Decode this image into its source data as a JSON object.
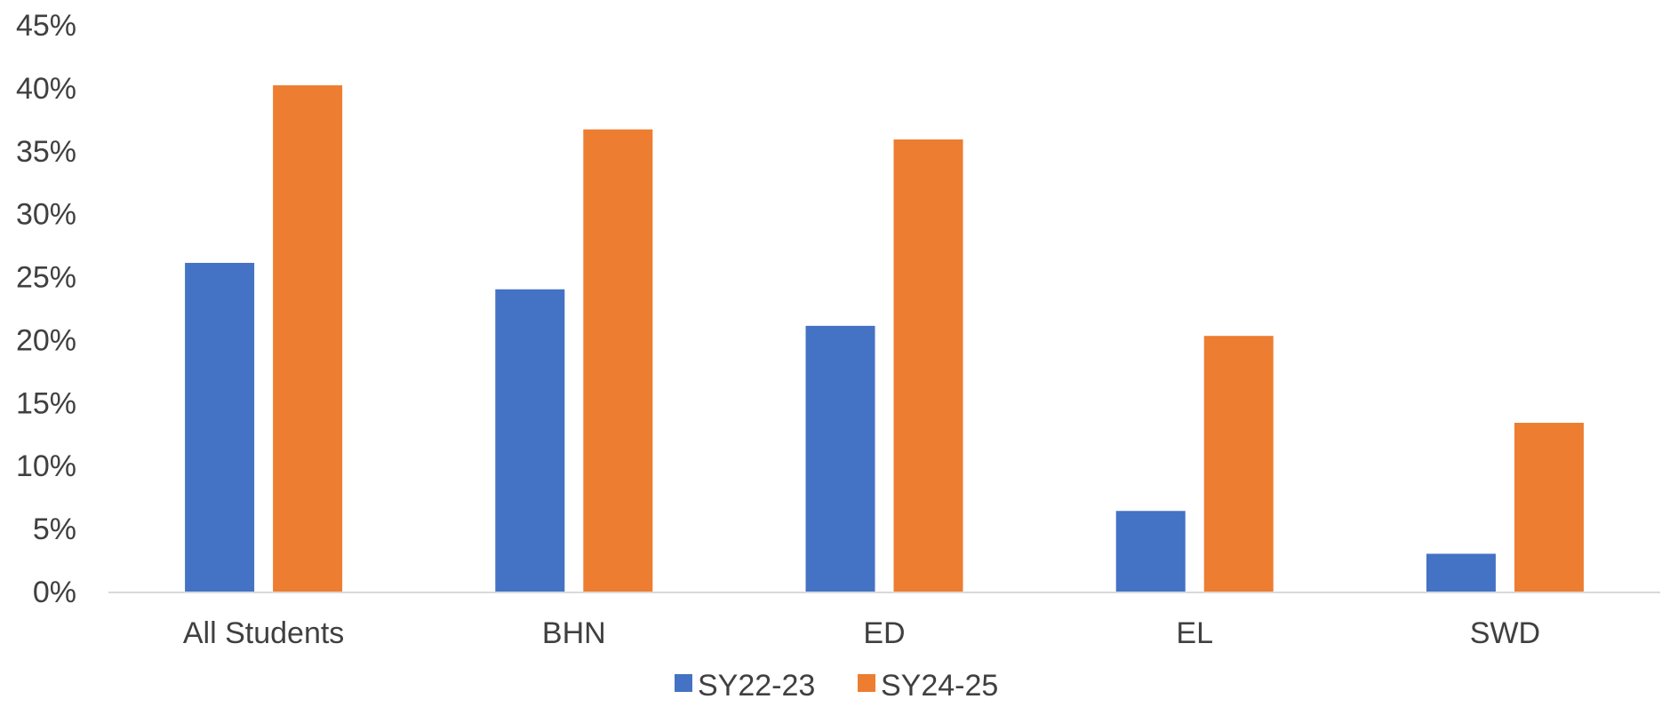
{
  "chart_data": {
    "type": "bar",
    "categories": [
      "All Students",
      "BHN",
      "ED",
      "EL",
      "SWD"
    ],
    "series": [
      {
        "name": "SY22-23",
        "color": "#4472C4",
        "values": [
          26.1,
          24.0,
          21.1,
          6.4,
          3.0
        ]
      },
      {
        "name": "SY24-25",
        "color": "#ED7D31",
        "values": [
          40.2,
          36.7,
          35.9,
          20.3,
          13.4
        ]
      }
    ],
    "ylim": [
      0,
      45
    ],
    "y_ticks": [
      0,
      5,
      10,
      15,
      20,
      25,
      30,
      35,
      40,
      45
    ],
    "y_tick_labels": [
      "0%",
      "5%",
      "10%",
      "15%",
      "20%",
      "25%",
      "30%",
      "35%",
      "40%",
      "45%"
    ],
    "grid": false,
    "legend_position": "bottom-center"
  }
}
